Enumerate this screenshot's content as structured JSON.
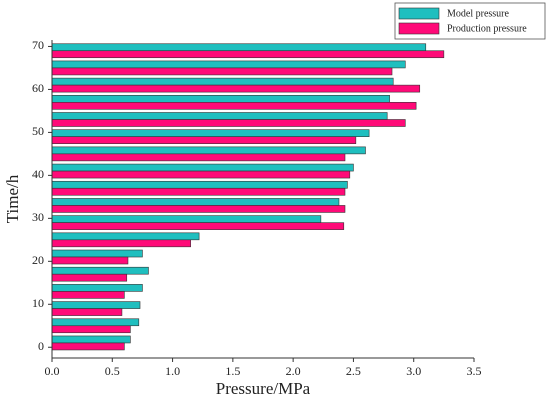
{
  "chart_data": {
    "type": "hbar",
    "xlabel": "Pressure/MPa",
    "ylabel": "Time/h",
    "x": [
      1,
      5,
      9,
      13,
      17,
      21,
      25,
      29,
      33,
      37,
      41,
      45,
      49,
      53,
      57,
      61,
      65,
      69
    ],
    "series": [
      {
        "name": "Model pressure",
        "color": "#1fbfbf",
        "values": [
          0.65,
          0.72,
          0.73,
          0.75,
          0.8,
          0.75,
          1.22,
          2.23,
          2.38,
          2.45,
          2.5,
          2.6,
          2.63,
          2.78,
          2.8,
          2.83,
          2.93,
          3.1
        ]
      },
      {
        "name": "Production pressure",
        "color": "#ff0a78",
        "values": [
          0.6,
          0.65,
          0.58,
          0.6,
          0.62,
          0.63,
          1.15,
          2.42,
          2.43,
          2.43,
          2.47,
          2.43,
          2.52,
          2.93,
          3.02,
          3.05,
          2.82,
          3.25
        ]
      }
    ],
    "xlim": [
      0,
      3.5
    ],
    "xticks": [
      {
        "value": 0,
        "label": "0.0"
      },
      0.5,
      {
        "value": 1,
        "label": "1.0"
      },
      1.5,
      {
        "value": 2,
        "label": "2.0"
      },
      2.5,
      {
        "value": 3,
        "label": "3.0"
      },
      3.5
    ],
    "ylim": [
      -2.5,
      71.5
    ],
    "yticks": [
      0,
      10,
      20,
      30,
      40,
      50,
      60,
      70
    ],
    "legend": "upper right",
    "grid": false
  }
}
